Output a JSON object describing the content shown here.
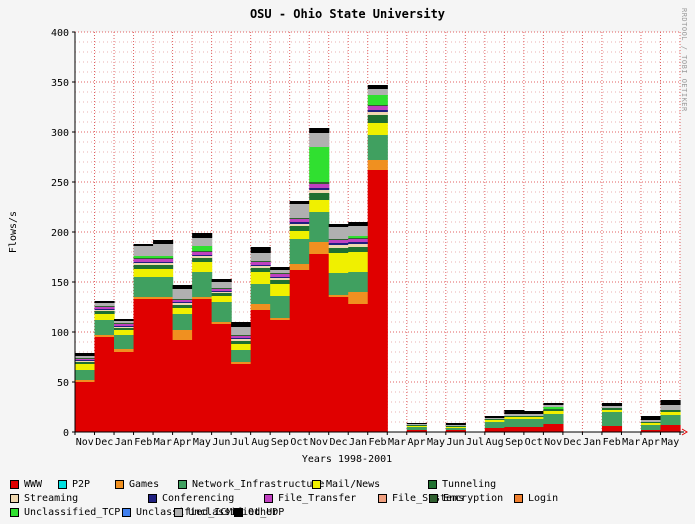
{
  "chart_data": {
    "type": "bar",
    "stacked": true,
    "title": "OSU - Ohio State University",
    "ylabel": "Flows/s",
    "xlabel": "Years 1998-2001",
    "side_credit": "RRDTOOL / TOBI OETIKER",
    "ylim": [
      0,
      400
    ],
    "yticks": [
      0,
      50,
      100,
      150,
      200,
      250,
      300,
      350,
      400
    ],
    "grid": true,
    "legend_position": "bottom",
    "x_tick_labels": [
      "Nov",
      "Dec",
      "Jan",
      "Feb",
      "Mar",
      "Apr",
      "May",
      "Jun",
      "Jul",
      "Aug",
      "Sep",
      "Oct",
      "Nov",
      "Dec",
      "Jan",
      "Feb",
      "Mar",
      "Apr",
      "May",
      "Jun",
      "Jul",
      "Aug",
      "Sep",
      "Oct",
      "Nov",
      "Dec",
      "Jan",
      "Feb",
      "Mar",
      "Apr",
      "May"
    ],
    "categories": [
      "Nov",
      "Dec",
      "Jan",
      "Feb",
      "Mar",
      "Apr",
      "May",
      "Jun",
      "Jul",
      "Aug",
      "Sep",
      "Oct",
      "Nov",
      "Dec",
      "Jan",
      "Feb",
      "Mar",
      "Apr",
      "May",
      "Jun",
      "Jul",
      "Aug",
      "Sep",
      "Oct",
      "Nov",
      "Dec",
      "Jan",
      "Feb",
      "Mar",
      "Apr",
      "May"
    ],
    "series": [
      {
        "name": "WWW",
        "color": "#e00000",
        "values": [
          50,
          95,
          80,
          133,
          133,
          92,
          133,
          108,
          68,
          122,
          112,
          162,
          178,
          135,
          128,
          262,
          0,
          2,
          0,
          2,
          0,
          4,
          5,
          5,
          8,
          0,
          0,
          6,
          0,
          2,
          7
        ]
      },
      {
        "name": "P2P",
        "color": "#00e0e0",
        "values": [
          0,
          0,
          0,
          0,
          0,
          0,
          0,
          0,
          0,
          0,
          0,
          0,
          0,
          0,
          0,
          0,
          0,
          0,
          0,
          0,
          0,
          0,
          0,
          0,
          0,
          0,
          0,
          0,
          0,
          0,
          0
        ]
      },
      {
        "name": "Games",
        "color": "#f09020",
        "values": [
          2,
          2,
          3,
          2,
          2,
          10,
          2,
          2,
          2,
          6,
          2,
          6,
          12,
          2,
          12,
          10,
          0,
          0,
          0,
          0,
          0,
          0,
          0,
          0,
          0,
          0,
          0,
          0,
          0,
          0,
          0
        ]
      },
      {
        "name": "Network_Infrastructure",
        "color": "#40a060",
        "values": [
          10,
          15,
          14,
          20,
          20,
          16,
          25,
          20,
          12,
          20,
          22,
          25,
          30,
          22,
          20,
          25,
          0,
          3,
          0,
          2,
          0,
          6,
          8,
          8,
          10,
          0,
          0,
          14,
          0,
          5,
          10
        ]
      },
      {
        "name": "Mail/News",
        "color": "#f0f000",
        "values": [
          6,
          6,
          5,
          8,
          8,
          6,
          10,
          6,
          6,
          12,
          12,
          8,
          12,
          20,
          20,
          12,
          0,
          1,
          0,
          1,
          0,
          2,
          2,
          2,
          3,
          0,
          0,
          2,
          0,
          2,
          3
        ]
      },
      {
        "name": "Tunneling",
        "color": "#207030",
        "values": [
          2,
          3,
          2,
          4,
          4,
          3,
          4,
          3,
          3,
          4,
          4,
          5,
          7,
          5,
          5,
          8,
          0,
          1,
          0,
          1,
          0,
          1,
          1,
          1,
          2,
          0,
          0,
          2,
          0,
          1,
          2
        ]
      },
      {
        "name": "Streaming",
        "color": "#f0d8b0",
        "values": [
          1,
          1,
          1,
          2,
          2,
          2,
          2,
          1,
          2,
          2,
          2,
          2,
          3,
          3,
          3,
          3,
          0,
          0,
          0,
          0,
          0,
          0,
          0,
          0,
          0,
          0,
          0,
          0,
          0,
          0,
          0
        ]
      },
      {
        "name": "Conferencing",
        "color": "#202080",
        "values": [
          1,
          1,
          1,
          1,
          1,
          1,
          1,
          1,
          1,
          1,
          1,
          2,
          2,
          2,
          2,
          2,
          0,
          0,
          0,
          0,
          0,
          0,
          0,
          0,
          0,
          0,
          0,
          0,
          0,
          0,
          0
        ]
      },
      {
        "name": "File_Transfer",
        "color": "#c040c0",
        "values": [
          1,
          2,
          2,
          3,
          3,
          2,
          3,
          2,
          2,
          3,
          3,
          3,
          4,
          3,
          3,
          4,
          0,
          0,
          0,
          0,
          0,
          0,
          0,
          0,
          0,
          0,
          0,
          0,
          0,
          0,
          0
        ]
      },
      {
        "name": "File_Systems",
        "color": "#f0a080",
        "values": [
          0,
          0,
          0,
          0,
          0,
          0,
          0,
          0,
          0,
          0,
          0,
          0,
          0,
          0,
          0,
          0,
          0,
          0,
          0,
          0,
          0,
          0,
          0,
          0,
          0,
          0,
          0,
          0,
          0,
          0,
          0
        ]
      },
      {
        "name": "Encryption",
        "color": "#306030",
        "values": [
          1,
          1,
          1,
          1,
          1,
          1,
          1,
          1,
          1,
          1,
          1,
          1,
          2,
          1,
          1,
          1,
          0,
          0,
          0,
          0,
          0,
          0,
          0,
          0,
          0,
          0,
          0,
          0,
          0,
          0,
          0
        ]
      },
      {
        "name": "Login",
        "color": "#f08030",
        "values": [
          0,
          0,
          0,
          0,
          0,
          0,
          0,
          0,
          0,
          0,
          0,
          0,
          0,
          0,
          0,
          0,
          0,
          0,
          0,
          0,
          0,
          0,
          0,
          0,
          0,
          0,
          0,
          0,
          0,
          0,
          0
        ]
      },
      {
        "name": "Unclassified_TCP",
        "color": "#30e030",
        "values": [
          0,
          0,
          0,
          2,
          2,
          0,
          5,
          0,
          0,
          0,
          0,
          0,
          35,
          0,
          2,
          10,
          0,
          0,
          0,
          0,
          0,
          0,
          0,
          0,
          2,
          0,
          0,
          0,
          0,
          0,
          0
        ]
      },
      {
        "name": "Unclassified_ICMP",
        "color": "#4080f0",
        "values": [
          0,
          0,
          0,
          0,
          0,
          0,
          0,
          0,
          0,
          0,
          0,
          0,
          0,
          0,
          0,
          0,
          0,
          0,
          0,
          0,
          0,
          0,
          0,
          0,
          0,
          0,
          0,
          0,
          0,
          0,
          0
        ]
      },
      {
        "name": "Unclassified_UDP",
        "color": "#b0b0b0",
        "values": [
          2,
          3,
          2,
          10,
          12,
          10,
          8,
          6,
          8,
          8,
          3,
          14,
          14,
          12,
          10,
          6,
          0,
          1,
          0,
          1,
          0,
          1,
          2,
          2,
          2,
          0,
          0,
          2,
          0,
          2,
          5
        ]
      },
      {
        "name": "Other",
        "color": "#000000",
        "values": [
          3,
          2,
          2,
          2,
          4,
          4,
          5,
          3,
          5,
          6,
          3,
          3,
          5,
          3,
          4,
          4,
          0,
          1,
          0,
          2,
          0,
          2,
          4,
          3,
          2,
          0,
          0,
          3,
          0,
          4,
          5
        ]
      }
    ]
  }
}
